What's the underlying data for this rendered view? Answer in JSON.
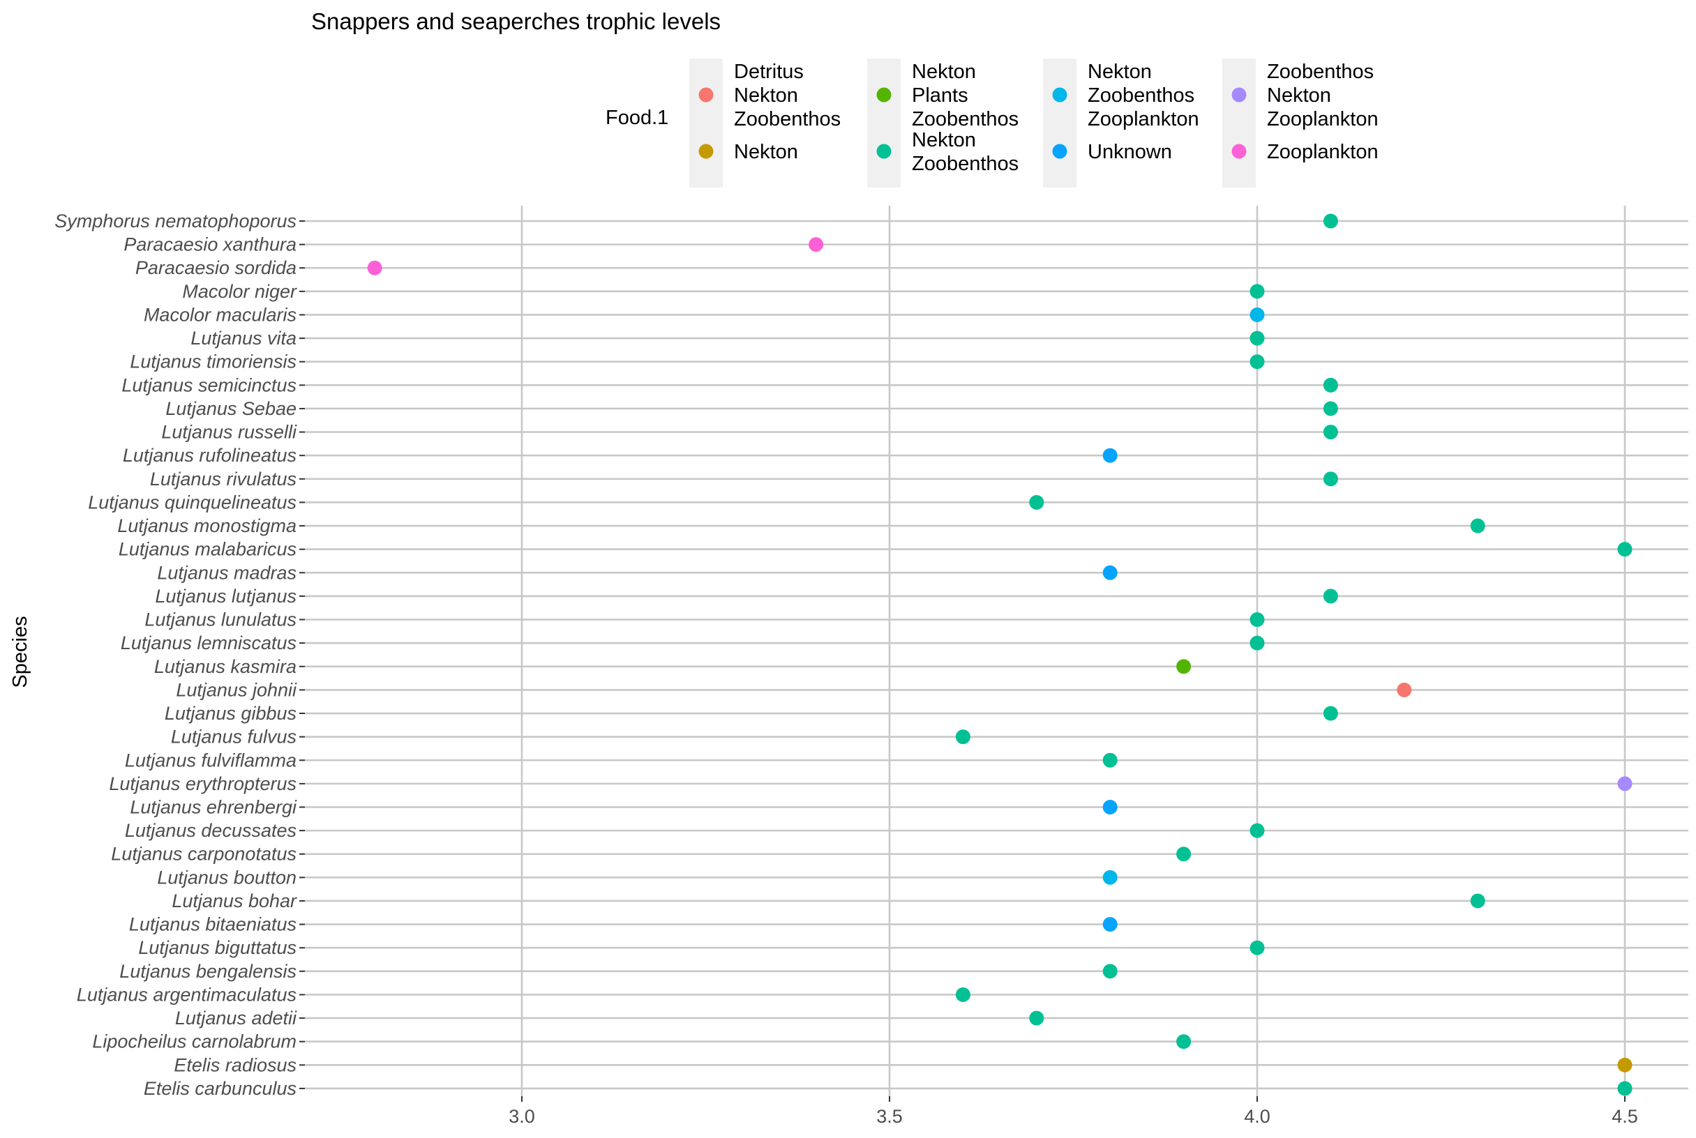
{
  "chart_data": {
    "type": "scatter",
    "title": "Snappers and seaperches trophic levels",
    "ylabel": "Species",
    "xlabel": "",
    "xlim": [
      2.75,
      4.58
    ],
    "x_ticks": [
      "3.0",
      "3.5",
      "4.0",
      "4.5"
    ],
    "grid": true,
    "legend_title": "Food.1",
    "legend_position": "top",
    "legend": [
      {
        "key": "dnz",
        "lines": [
          "Detritus",
          "Nekton",
          "Zoobenthos"
        ],
        "color": "#F8766D"
      },
      {
        "key": "n",
        "lines": [
          "Nekton"
        ],
        "color": "#C49A00"
      },
      {
        "key": "npz",
        "lines": [
          "Nekton",
          "Plants",
          "Zoobenthos"
        ],
        "color": "#53B400"
      },
      {
        "key": "nz",
        "lines": [
          "Nekton",
          "Zoobenthos"
        ],
        "color": "#00C094"
      },
      {
        "key": "nzz",
        "lines": [
          "Nekton",
          "Zoobenthos",
          "Zooplankton"
        ],
        "color": "#00B6EB"
      },
      {
        "key": "u",
        "lines": [
          "Unknown"
        ],
        "color": "#06A4FF"
      },
      {
        "key": "znz",
        "lines": [
          "Zoobenthos",
          "Nekton",
          "Zooplankton"
        ],
        "color": "#A58AFF"
      },
      {
        "key": "zp",
        "lines": [
          "Zooplankton"
        ],
        "color": "#FB61D7"
      }
    ],
    "points": [
      {
        "species": "Symphorus nematophoporus",
        "x": 4.1,
        "food": "nz"
      },
      {
        "species": "Paracaesio xanthura",
        "x": 3.4,
        "food": "zp"
      },
      {
        "species": "Paracaesio sordida",
        "x": 2.8,
        "food": "zp"
      },
      {
        "species": "Macolor  niger",
        "x": 4.0,
        "food": "nz"
      },
      {
        "species": "Macolor  macularis",
        "x": 4.0,
        "food": "nzz"
      },
      {
        "species": "Lutjanus vita",
        "x": 4.0,
        "food": "nz"
      },
      {
        "species": "Lutjanus timoriensis ",
        "x": 4.0,
        "food": "nz"
      },
      {
        "species": "Lutjanus semicinctus ",
        "x": 4.1,
        "food": "nz"
      },
      {
        "species": "Lutjanus Sebae",
        "x": 4.1,
        "food": "nz"
      },
      {
        "species": "Lutjanus russelli",
        "x": 4.1,
        "food": "nz"
      },
      {
        "species": "Lutjanus rufolineatus",
        "x": 3.8,
        "food": "u"
      },
      {
        "species": "Lutjanus rivulatus",
        "x": 4.1,
        "food": "nz"
      },
      {
        "species": "Lutjanus quinquelineatus",
        "x": 3.7,
        "food": "nz"
      },
      {
        "species": "Lutjanus monostigma",
        "x": 4.3,
        "food": "nz"
      },
      {
        "species": "Lutjanus malabaricus",
        "x": 4.5,
        "food": "nz"
      },
      {
        "species": "Lutjanus madras",
        "x": 3.8,
        "food": "u"
      },
      {
        "species": "Lutjanus lutjanus",
        "x": 4.1,
        "food": "nz"
      },
      {
        "species": "Lutjanus lunulatus",
        "x": 4.0,
        "food": "nz"
      },
      {
        "species": "Lutjanus lemniscatus",
        "x": 4.0,
        "food": "nz"
      },
      {
        "species": "Lutjanus kasmira",
        "x": 3.9,
        "food": "npz"
      },
      {
        "species": "Lutjanus johnii",
        "x": 4.2,
        "food": "dnz"
      },
      {
        "species": "Lutjanus gibbus",
        "x": 4.1,
        "food": "nz"
      },
      {
        "species": "Lutjanus fulvus",
        "x": 3.6,
        "food": "nz"
      },
      {
        "species": "Lutjanus fulviflamma",
        "x": 3.8,
        "food": "nz"
      },
      {
        "species": "Lutjanus erythropterus",
        "x": 4.5,
        "food": "znz"
      },
      {
        "species": "Lutjanus ehrenbergi",
        "x": 3.8,
        "food": "u"
      },
      {
        "species": "Lutjanus decussates",
        "x": 4.0,
        "food": "nz"
      },
      {
        "species": "Lutjanus carponotatus",
        "x": 3.9,
        "food": "nz"
      },
      {
        "species": "Lutjanus boutton",
        "x": 3.8,
        "food": "nzz"
      },
      {
        "species": "Lutjanus bohar",
        "x": 4.3,
        "food": "nz"
      },
      {
        "species": "Lutjanus bitaeniatus",
        "x": 3.8,
        "food": "u"
      },
      {
        "species": "Lutjanus biguttatus",
        "x": 4.0,
        "food": "nz"
      },
      {
        "species": "Lutjanus bengalensis",
        "x": 3.8,
        "food": "nz"
      },
      {
        "species": "Lutjanus argentimaculatus",
        "x": 3.6,
        "food": "nz"
      },
      {
        "species": "Lutjanus adetii",
        "x": 3.7,
        "food": "nz"
      },
      {
        "species": "Lipocheilus carnolabrum",
        "x": 3.9,
        "food": "nz"
      },
      {
        "species": "Etelis radiosus",
        "x": 4.5,
        "food": "n"
      },
      {
        "species": "Etelis carbunculus",
        "x": 4.5,
        "food": "nz"
      }
    ]
  }
}
